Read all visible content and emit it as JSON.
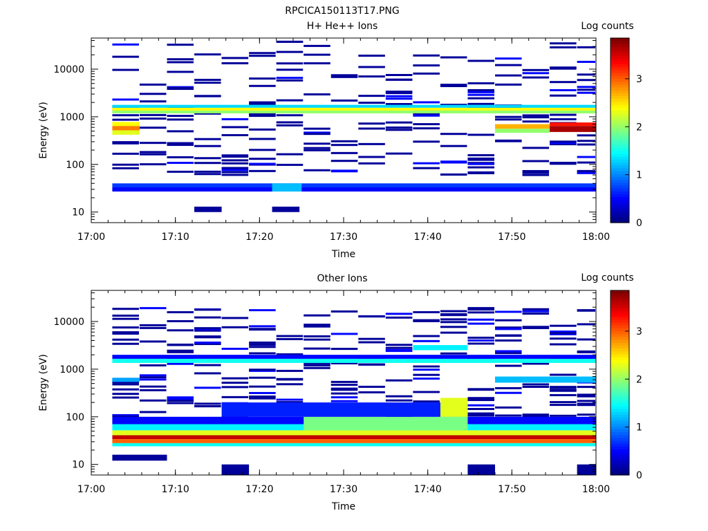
{
  "figure": {
    "title": "RPCICA150113T17.PNG"
  },
  "chart_data": [
    {
      "type": "heatmap",
      "title": "H+ He++ Ions",
      "xlabel": "Time",
      "ylabel": "Energy (eV)",
      "x_scale": "time",
      "y_scale": "log",
      "xlim": [
        "17:00",
        "18:00"
      ],
      "ylim": [
        6,
        45000
      ],
      "x_tick_labels": [
        "17:00",
        "17:10",
        "17:20",
        "17:30",
        "17:40",
        "17:50",
        "18:00"
      ],
      "y_tick_labels": [
        "10",
        "100",
        "1000",
        "10000"
      ],
      "colorbar": {
        "label": "Log counts",
        "range": [
          0,
          3.85
        ],
        "tick_labels": [
          "0",
          "1",
          "2",
          "3"
        ]
      },
      "time_bins": [
        "17:02:30",
        "17:05:45",
        "17:09:00",
        "17:12:15",
        "17:15:30",
        "17:18:45",
        "17:22:00",
        "17:25:15",
        "17:28:30",
        "17:31:45",
        "17:35:00",
        "17:38:15",
        "17:41:30",
        "17:44:45",
        "17:48:00",
        "17:51:15",
        "17:54:30",
        "17:57:45"
      ],
      "dense_cells": [
        {
          "t_from": "17:02:30",
          "t_to": "18:00:00",
          "e_min": 1350,
          "e_max": 1550,
          "log_counts": 2.4
        },
        {
          "t_from": "17:02:30",
          "t_to": "18:00:00",
          "e_min": 1180,
          "e_max": 1350,
          "log_counts": 2.0
        },
        {
          "t_from": "17:02:30",
          "t_to": "18:00:00",
          "e_min": 1550,
          "e_max": 1780,
          "log_counts": 1.3
        },
        {
          "t_from": "17:02:30",
          "t_to": "17:05:45",
          "e_min": 640,
          "e_max": 780,
          "log_counts": 2.4
        },
        {
          "t_from": "17:02:30",
          "t_to": "17:05:45",
          "e_min": 520,
          "e_max": 640,
          "log_counts": 2.9
        },
        {
          "t_from": "17:02:30",
          "t_to": "17:05:45",
          "e_min": 420,
          "e_max": 520,
          "log_counts": 2.3
        },
        {
          "t_from": "17:48:00",
          "t_to": "17:54:30",
          "e_min": 560,
          "e_max": 700,
          "log_counts": 2.7
        },
        {
          "t_from": "17:48:00",
          "t_to": "17:54:30",
          "e_min": 460,
          "e_max": 560,
          "log_counts": 2.0
        },
        {
          "t_from": "17:54:30",
          "t_to": "18:00:00",
          "e_min": 640,
          "e_max": 760,
          "log_counts": 3.3
        },
        {
          "t_from": "17:54:30",
          "t_to": "18:00:00",
          "e_min": 480,
          "e_max": 640,
          "log_counts": 3.7
        },
        {
          "t_from": "17:02:30",
          "t_to": "18:00:00",
          "e_min": 33,
          "e_max": 40,
          "log_counts": 0.7
        },
        {
          "t_from": "17:02:30",
          "t_to": "18:00:00",
          "e_min": 27,
          "e_max": 33,
          "log_counts": 0.5
        },
        {
          "t_from": "17:21:30",
          "t_to": "17:25:00",
          "e_min": 27,
          "e_max": 40,
          "log_counts": 1.2
        },
        {
          "t_from": "17:12:15",
          "t_to": "17:15:30",
          "e_min": 10,
          "e_max": 13,
          "log_counts": 0.1
        },
        {
          "t_from": "17:21:30",
          "t_to": "17:24:45",
          "e_min": 10,
          "e_max": 13,
          "log_counts": 0.1
        }
      ],
      "sparse_band": {
        "e_min": 60,
        "e_max": 40000,
        "log_counts": 0.1
      }
    },
    {
      "type": "heatmap",
      "title": "Other Ions",
      "xlabel": "Time",
      "ylabel": "Energy (eV)",
      "x_scale": "time",
      "y_scale": "log",
      "xlim": [
        "17:00",
        "18:00"
      ],
      "ylim": [
        6,
        45000
      ],
      "x_tick_labels": [
        "17:00",
        "17:10",
        "17:20",
        "17:30",
        "17:40",
        "17:50",
        "18:00"
      ],
      "y_tick_labels": [
        "10",
        "100",
        "1000",
        "10000"
      ],
      "colorbar": {
        "label": "Log counts",
        "range": [
          0,
          3.85
        ],
        "tick_labels": [
          "0",
          "1",
          "2",
          "3"
        ]
      },
      "time_bins": [
        "17:02:30",
        "17:05:45",
        "17:09:00",
        "17:12:15",
        "17:15:30",
        "17:18:45",
        "17:22:00",
        "17:25:15",
        "17:28:30",
        "17:31:45",
        "17:35:00",
        "17:38:15",
        "17:41:30",
        "17:44:45",
        "17:48:00",
        "17:51:15",
        "17:54:30",
        "17:57:45"
      ],
      "dense_cells": [
        {
          "t_from": "17:02:30",
          "t_to": "18:00:00",
          "e_min": 34,
          "e_max": 41,
          "log_counts": 3.6
        },
        {
          "t_from": "17:02:30",
          "t_to": "18:00:00",
          "e_min": 28,
          "e_max": 34,
          "log_counts": 3.0
        },
        {
          "t_from": "17:02:30",
          "t_to": "18:00:00",
          "e_min": 24,
          "e_max": 28,
          "log_counts": 1.5
        },
        {
          "t_from": "17:02:30",
          "t_to": "18:00:00",
          "e_min": 41,
          "e_max": 52,
          "log_counts": 2.3
        },
        {
          "t_from": "17:02:30",
          "t_to": "18:00:00",
          "e_min": 52,
          "e_max": 70,
          "log_counts": 1.4
        },
        {
          "t_from": "17:02:30",
          "t_to": "18:00:00",
          "e_min": 70,
          "e_max": 100,
          "log_counts": 0.5
        },
        {
          "t_from": "17:25:15",
          "t_to": "17:44:45",
          "e_min": 52,
          "e_max": 100,
          "log_counts": 1.9
        },
        {
          "t_from": "17:41:30",
          "t_to": "17:44:45",
          "e_min": 100,
          "e_max": 250,
          "log_counts": 2.3
        },
        {
          "t_from": "17:15:30",
          "t_to": "17:41:30",
          "e_min": 100,
          "e_max": 200,
          "log_counts": 0.6
        },
        {
          "t_from": "17:02:30",
          "t_to": "18:00:00",
          "e_min": 1350,
          "e_max": 1650,
          "log_counts": 1.5
        },
        {
          "t_from": "17:02:30",
          "t_to": "18:00:00",
          "e_min": 1650,
          "e_max": 2000,
          "log_counts": 0.5
        },
        {
          "t_from": "17:38:15",
          "t_to": "17:44:45",
          "e_min": 2500,
          "e_max": 3200,
          "log_counts": 1.4
        },
        {
          "t_from": "17:48:00",
          "t_to": "18:00:00",
          "e_min": 520,
          "e_max": 700,
          "log_counts": 1.2
        },
        {
          "t_from": "17:02:30",
          "t_to": "17:05:45",
          "e_min": 540,
          "e_max": 660,
          "log_counts": 1.1
        },
        {
          "t_from": "17:02:30",
          "t_to": "17:09:00",
          "e_min": 12,
          "e_max": 16,
          "log_counts": 0.1
        },
        {
          "t_from": "17:15:30",
          "t_to": "17:18:45",
          "e_min": 6,
          "e_max": 10,
          "log_counts": 0.1
        },
        {
          "t_from": "17:44:45",
          "t_to": "17:48:00",
          "e_min": 6,
          "e_max": 10,
          "log_counts": 0.1
        },
        {
          "t_from": "17:57:45",
          "t_to": "18:00:00",
          "e_min": 6,
          "e_max": 10,
          "log_counts": 0.1
        }
      ],
      "sparse_band": {
        "e_min": 100,
        "e_max": 20000,
        "log_counts": 0.1
      }
    }
  ]
}
